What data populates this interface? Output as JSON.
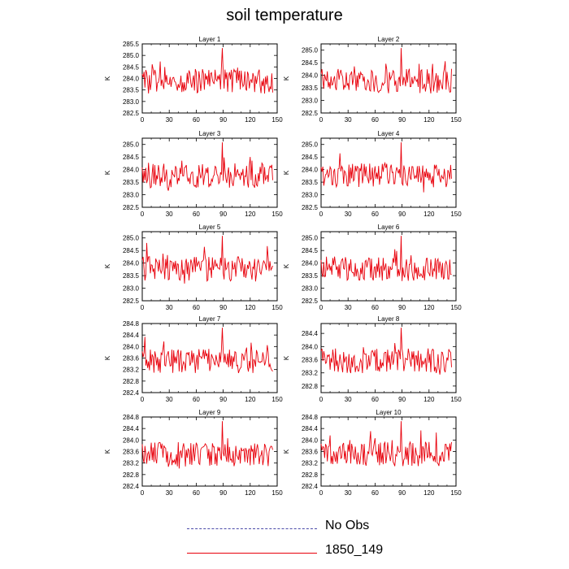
{
  "title": "soil temperature",
  "legend": {
    "items": [
      {
        "label": "No Obs",
        "color": "#4a4aa8",
        "style": "dashed"
      },
      {
        "label": "1850_149",
        "color": "#e8000b",
        "style": "solid"
      }
    ]
  },
  "chart_data": [
    {
      "type": "line",
      "title": "Layer 1",
      "ylabel": "K",
      "xlim": [
        0,
        150
      ],
      "ylim": [
        282.5,
        285.5
      ],
      "xticks": [
        0,
        30,
        60,
        90,
        120,
        150
      ],
      "yticks": [
        282.5,
        283.0,
        283.5,
        284.0,
        284.5,
        285.0,
        285.5
      ],
      "yfmt": 1,
      "series": [
        {
          "name": "1850_149",
          "color": "#e8000b"
        }
      ]
    },
    {
      "type": "line",
      "title": "Layer 2",
      "ylabel": "K",
      "xlim": [
        0,
        150
      ],
      "ylim": [
        282.5,
        285.25
      ],
      "xticks": [
        0,
        30,
        60,
        90,
        120,
        150
      ],
      "yticks": [
        282.5,
        283.0,
        283.5,
        284.0,
        284.5,
        285.0
      ],
      "yfmt": 1,
      "series": [
        {
          "name": "1850_149",
          "color": "#e8000b"
        }
      ]
    },
    {
      "type": "line",
      "title": "Layer 3",
      "ylabel": "K",
      "xlim": [
        0,
        150
      ],
      "ylim": [
        282.5,
        285.25
      ],
      "xticks": [
        0,
        30,
        60,
        90,
        120,
        150
      ],
      "yticks": [
        282.5,
        283.0,
        283.5,
        284.0,
        284.5,
        285.0
      ],
      "yfmt": 1,
      "series": [
        {
          "name": "1850_149",
          "color": "#e8000b"
        }
      ]
    },
    {
      "type": "line",
      "title": "Layer 4",
      "ylabel": "K",
      "xlim": [
        0,
        150
      ],
      "ylim": [
        282.5,
        285.25
      ],
      "xticks": [
        0,
        30,
        60,
        90,
        120,
        150
      ],
      "yticks": [
        282.5,
        283.0,
        283.5,
        284.0,
        284.5,
        285.0
      ],
      "yfmt": 1,
      "series": [
        {
          "name": "1850_149",
          "color": "#e8000b"
        }
      ]
    },
    {
      "type": "line",
      "title": "Layer 5",
      "ylabel": "K",
      "xlim": [
        0,
        150
      ],
      "ylim": [
        282.5,
        285.25
      ],
      "xticks": [
        0,
        30,
        60,
        90,
        120,
        150
      ],
      "yticks": [
        282.5,
        283.0,
        283.5,
        284.0,
        284.5,
        285.0
      ],
      "yfmt": 1,
      "series": [
        {
          "name": "1850_149",
          "color": "#e8000b"
        }
      ]
    },
    {
      "type": "line",
      "title": "Layer 6",
      "ylabel": "K",
      "xlim": [
        0,
        150
      ],
      "ylim": [
        282.5,
        285.25
      ],
      "xticks": [
        0,
        30,
        60,
        90,
        120,
        150
      ],
      "yticks": [
        282.5,
        283.0,
        283.5,
        284.0,
        284.5,
        285.0
      ],
      "yfmt": 1,
      "series": [
        {
          "name": "1850_149",
          "color": "#e8000b"
        }
      ]
    },
    {
      "type": "line",
      "title": "Layer 7",
      "ylabel": "K",
      "xlim": [
        0,
        150
      ],
      "ylim": [
        282.4,
        284.8
      ],
      "xticks": [
        0,
        30,
        60,
        90,
        120,
        150
      ],
      "yticks": [
        282.4,
        282.8,
        283.2,
        283.6,
        284.0,
        284.4,
        284.8
      ],
      "yfmt": 1,
      "series": [
        {
          "name": "1850_149",
          "color": "#e8000b"
        }
      ]
    },
    {
      "type": "line",
      "title": "Layer 8",
      "ylabel": "K",
      "xlim": [
        0,
        150
      ],
      "ylim": [
        282.6,
        284.7
      ],
      "xticks": [
        0,
        30,
        60,
        90,
        120,
        150
      ],
      "yticks": [
        282.8,
        283.2,
        283.6,
        284.0,
        284.4
      ],
      "yfmt": 1,
      "series": [
        {
          "name": "1850_149",
          "color": "#e8000b"
        }
      ]
    },
    {
      "type": "line",
      "title": "Layer 9",
      "ylabel": "K",
      "xlim": [
        0,
        150
      ],
      "ylim": [
        282.4,
        284.8
      ],
      "xticks": [
        0,
        30,
        60,
        90,
        120,
        150
      ],
      "yticks": [
        282.4,
        282.8,
        283.2,
        283.6,
        284.0,
        284.4,
        284.8
      ],
      "yfmt": 1,
      "series": [
        {
          "name": "1850_149",
          "color": "#e8000b"
        }
      ]
    },
    {
      "type": "line",
      "title": "Layer 10",
      "ylabel": "K",
      "xlim": [
        0,
        150
      ],
      "ylim": [
        282.4,
        284.8
      ],
      "xticks": [
        0,
        30,
        60,
        90,
        120,
        150
      ],
      "yticks": [
        282.4,
        282.8,
        283.2,
        283.6,
        284.0,
        284.4,
        284.8
      ],
      "yfmt": 1,
      "series": [
        {
          "name": "1850_149",
          "color": "#e8000b"
        }
      ]
    }
  ]
}
